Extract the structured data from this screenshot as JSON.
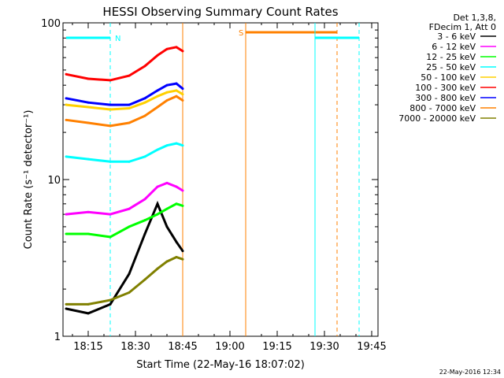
{
  "chart_data": {
    "type": "line",
    "title": "HESSI Observing Summary Count Rates",
    "xlabel": "Start Time (22-May-16 18:07:02)",
    "ylabel": "Count Rate (s⁻¹ detector⁻¹)",
    "yscale": "log",
    "ylim": [
      1,
      100
    ],
    "xlim": [
      "18:07",
      "19:47"
    ],
    "x_ticks": [
      "18:15",
      "18:30",
      "18:45",
      "19:00",
      "19:15",
      "19:30",
      "19:45"
    ],
    "y_ticks": [
      "1",
      "10",
      "100"
    ],
    "legend_header": [
      "Det 1,3,8,",
      "FDecim 1, Att 0"
    ],
    "legend_position": "right",
    "timestamp": "22-May-2016 12:34",
    "series": [
      {
        "name": "3 - 6 keV",
        "color": "#000000",
        "x": [
          "18:08",
          "18:15",
          "18:22",
          "18:28",
          "18:33",
          "18:37",
          "18:40",
          "18:43",
          "18:45"
        ],
        "values": [
          1.5,
          1.4,
          1.6,
          2.5,
          4.5,
          7.0,
          5.0,
          4.0,
          3.5
        ]
      },
      {
        "name": "6 - 12 keV",
        "color": "#ff00ff",
        "x": [
          "18:08",
          "18:15",
          "18:22",
          "18:28",
          "18:33",
          "18:37",
          "18:40",
          "18:43",
          "18:45"
        ],
        "values": [
          6.0,
          6.2,
          6.0,
          6.5,
          7.5,
          9.0,
          9.5,
          9.0,
          8.5
        ]
      },
      {
        "name": "12 - 25 keV",
        "color": "#00ff00",
        "x": [
          "18:08",
          "18:15",
          "18:22",
          "18:28",
          "18:33",
          "18:37",
          "18:40",
          "18:43",
          "18:45"
        ],
        "values": [
          4.5,
          4.5,
          4.3,
          5.0,
          5.5,
          6.0,
          6.5,
          7.0,
          6.8
        ]
      },
      {
        "name": "25 - 50 keV",
        "color": "#00ffff",
        "x": [
          "18:08",
          "18:15",
          "18:22",
          "18:28",
          "18:33",
          "18:37",
          "18:40",
          "18:43",
          "18:45"
        ],
        "values": [
          14,
          13.5,
          13,
          13,
          14,
          15.5,
          16.5,
          17,
          16.5
        ]
      },
      {
        "name": "50 - 100 keV",
        "color": "#ffd000",
        "x": [
          "18:08",
          "18:15",
          "18:22",
          "18:28",
          "18:33",
          "18:37",
          "18:40",
          "18:43",
          "18:45"
        ],
        "values": [
          30,
          29,
          28,
          28.5,
          31,
          34,
          36,
          37,
          35
        ]
      },
      {
        "name": "100 - 300 keV",
        "color": "#ff0000",
        "x": [
          "18:08",
          "18:15",
          "18:22",
          "18:28",
          "18:33",
          "18:37",
          "18:40",
          "18:43",
          "18:45"
        ],
        "values": [
          47,
          44,
          43,
          46,
          53,
          62,
          68,
          70,
          66
        ]
      },
      {
        "name": "300 - 800 keV",
        "color": "#0000ff",
        "x": [
          "18:08",
          "18:15",
          "18:22",
          "18:28",
          "18:33",
          "18:37",
          "18:40",
          "18:43",
          "18:45"
        ],
        "values": [
          33,
          31,
          30,
          30,
          33,
          37,
          40,
          41,
          38
        ]
      },
      {
        "name": "800 - 7000 keV",
        "color": "#ff8000",
        "x": [
          "18:08",
          "18:15",
          "18:22",
          "18:28",
          "18:33",
          "18:37",
          "18:40",
          "18:43",
          "18:45"
        ],
        "values": [
          24,
          23,
          22,
          23,
          25.5,
          29,
          32,
          34,
          32
        ]
      },
      {
        "name": "7000 - 20000 keV",
        "color": "#808000",
        "x": [
          "18:08",
          "18:15",
          "18:22",
          "18:28",
          "18:33",
          "18:37",
          "18:40",
          "18:43",
          "18:45"
        ],
        "values": [
          1.6,
          1.6,
          1.7,
          1.9,
          2.3,
          2.7,
          3.0,
          3.2,
          3.1
        ]
      }
    ],
    "annotations": [
      {
        "label": "N",
        "color": "#00ffff",
        "span": [
          "18:08",
          "18:22"
        ],
        "dashed_end": "18:22"
      },
      {
        "label": "S",
        "color": "#ff8000",
        "span": [
          "19:05",
          "19:34"
        ],
        "solid_start": "19:05",
        "dashed_end": "19:34"
      },
      {
        "label": "",
        "color": "#00ffff",
        "span": [
          "19:27",
          "19:41"
        ],
        "solid_start": "19:27",
        "dashed_end": "19:41"
      }
    ],
    "data_end_line": {
      "x": "18:45",
      "color": "#ff8000"
    }
  }
}
